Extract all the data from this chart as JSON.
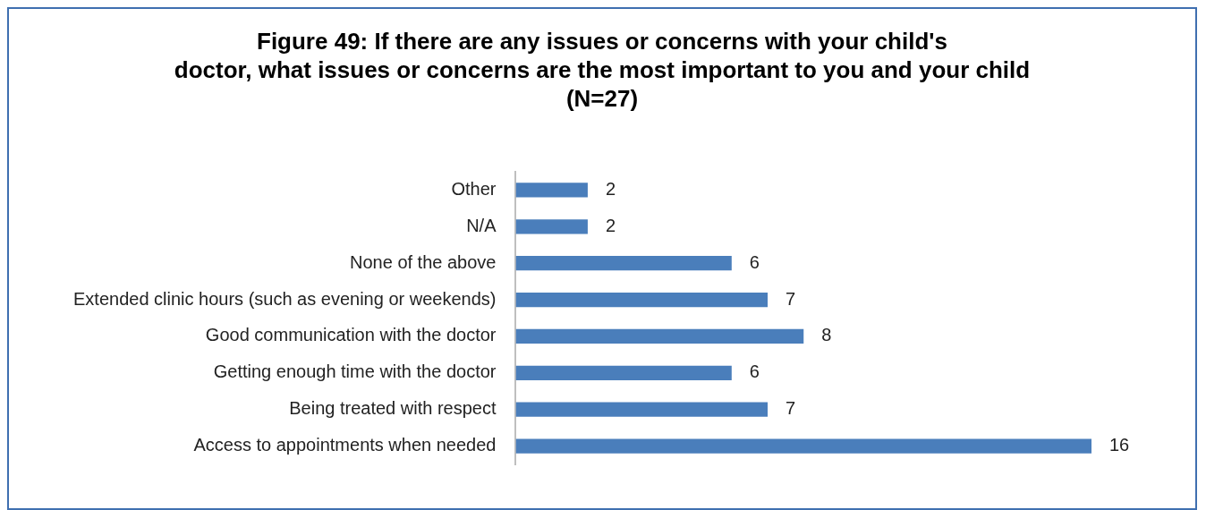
{
  "chart_data": {
    "type": "bar",
    "orientation": "horizontal",
    "title": "Figure 49: If there are any issues or concerns with your child's\ndoctor, what issues or concerns are the most important to you and your child\n(N=27)",
    "categories": [
      "Other",
      "N/A",
      "None of the above",
      "Extended clinic hours (such as evening or weekends)",
      "Good communication with the doctor",
      "Getting enough time with the doctor",
      "Being treated with respect",
      "Access to appointments when needed"
    ],
    "values": [
      2,
      2,
      6,
      7,
      8,
      6,
      7,
      16
    ],
    "color": "#4a7ebb",
    "data_labels": true,
    "grid": false,
    "legend": false
  }
}
